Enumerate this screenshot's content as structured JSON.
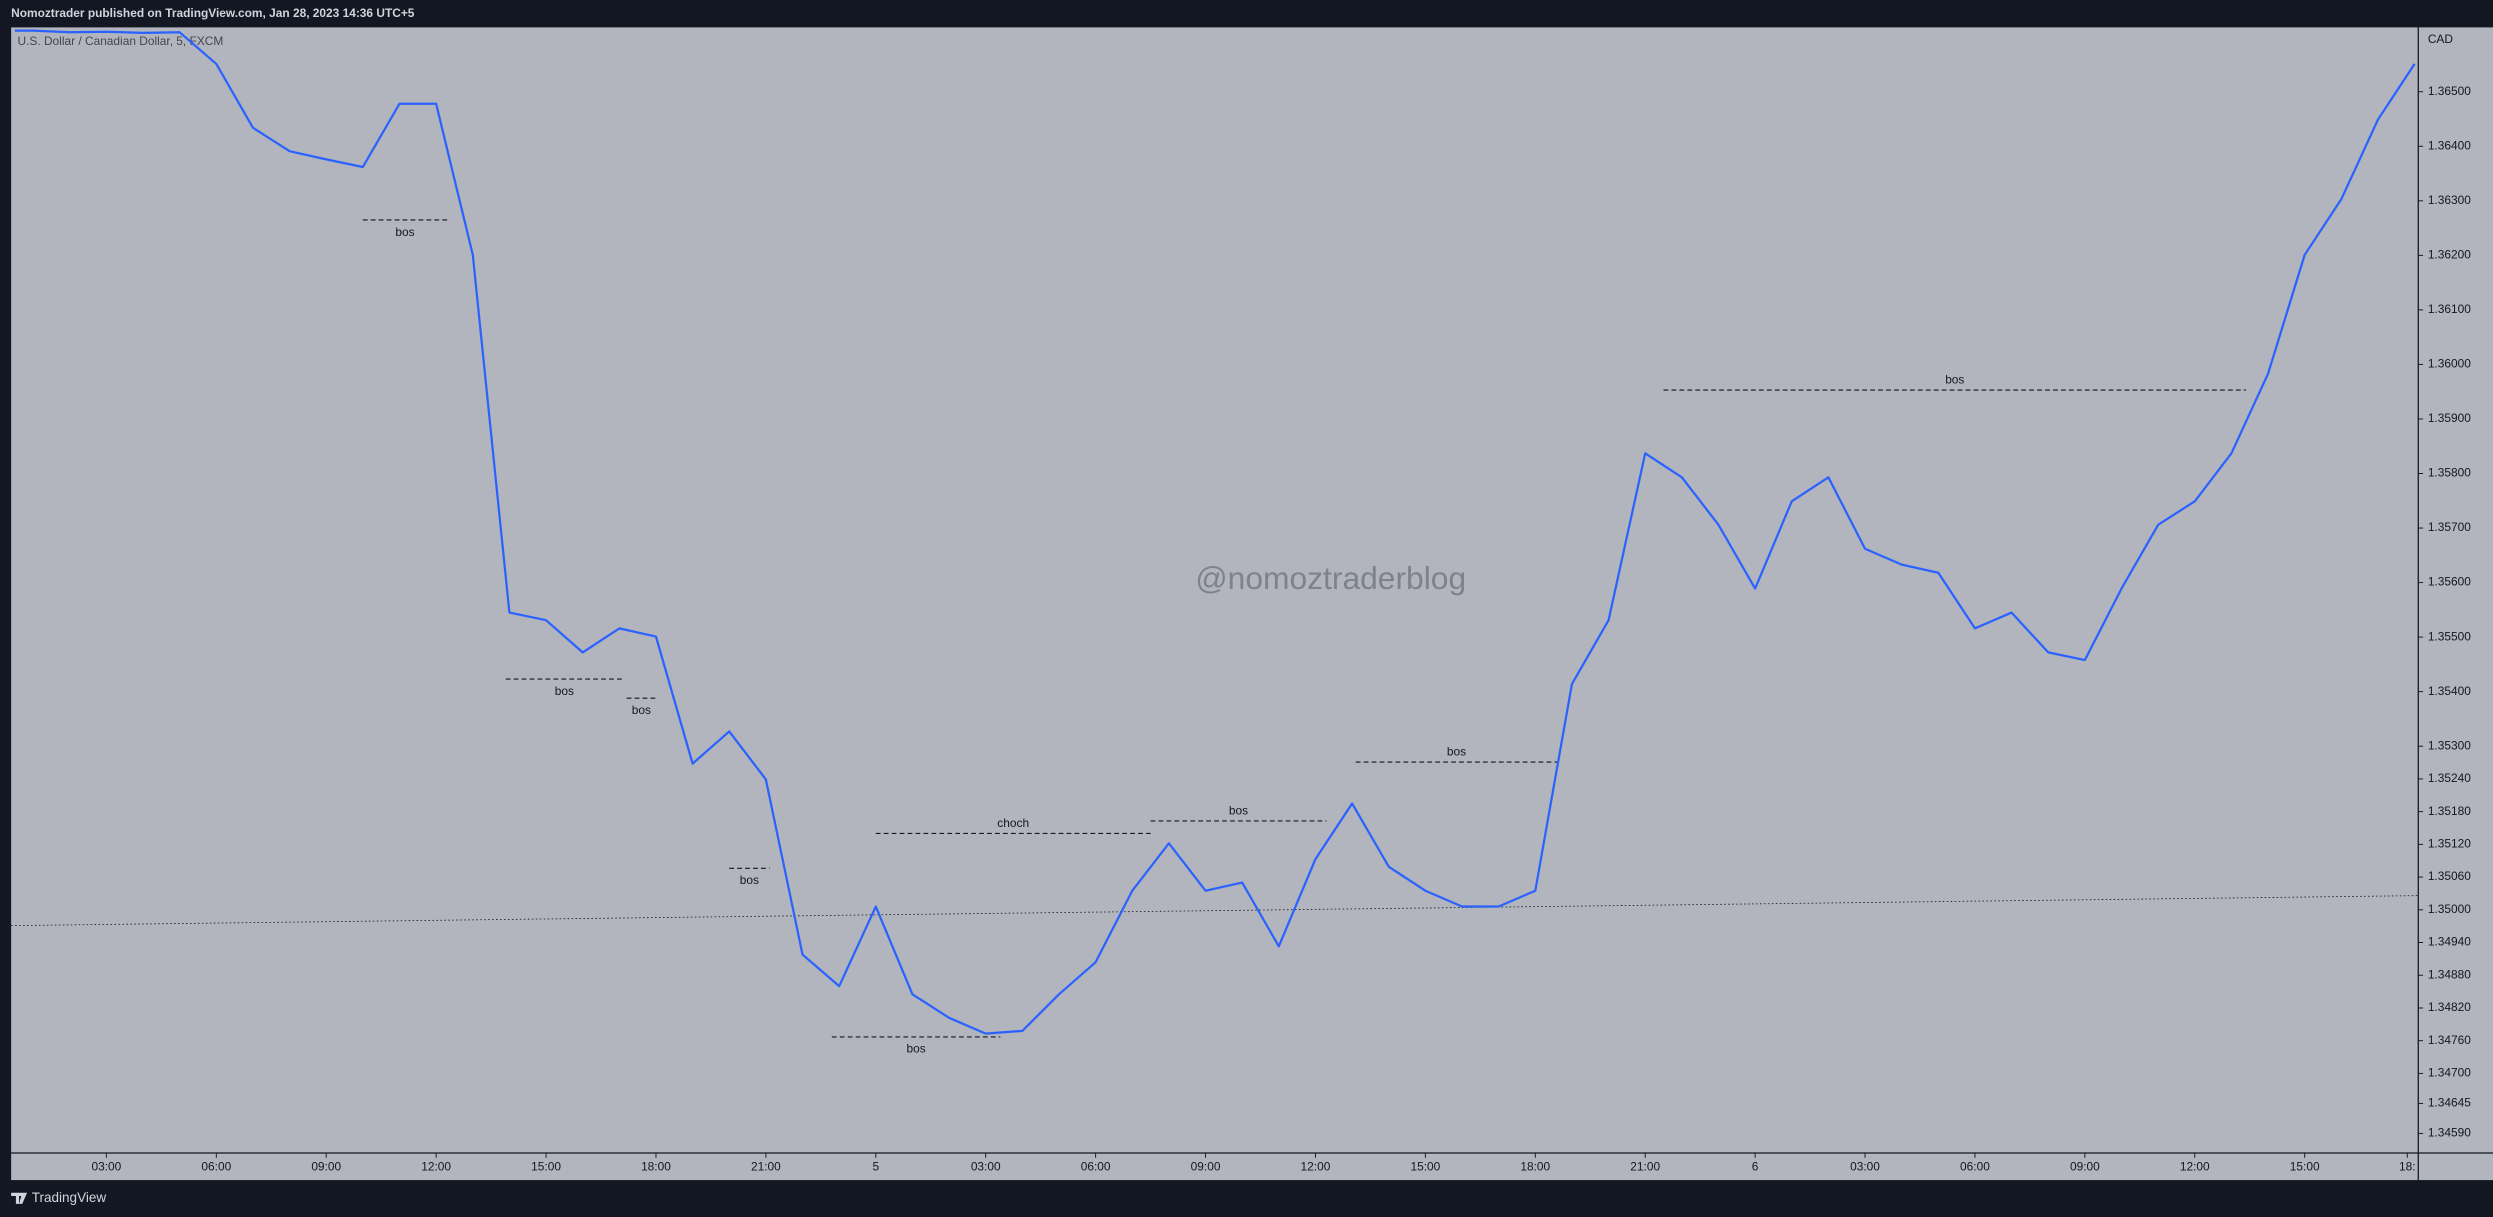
{
  "chart_data": {
    "type": "line",
    "header": "Nomoztrader published on TradingView.com, Jan 28, 2023 14:36 UTC+5",
    "symbol": "U.S. Dollar / Canadian Dollar, 5, FXCM",
    "currency": "CAD",
    "watermark": "@nomoztraderblog",
    "brand": "TradingView",
    "color": "#2962ff",
    "x": [
      0.5,
      1,
      2,
      3,
      4,
      5,
      6,
      7,
      8,
      9,
      10,
      11,
      12,
      13,
      14,
      15,
      16,
      17,
      18,
      19,
      20,
      21,
      22,
      23,
      24,
      25,
      26,
      27,
      28,
      29,
      30,
      31,
      32,
      33,
      34,
      35,
      36,
      37,
      38,
      39,
      40,
      41,
      42,
      43,
      44,
      45,
      46,
      47,
      48,
      49,
      50,
      51,
      52,
      53,
      54,
      55,
      56,
      57,
      58,
      59,
      60,
      61,
      62,
      63,
      64,
      65,
      66
    ],
    "values": [
      1.36612,
      1.36612,
      1.36609,
      1.3661,
      1.36608,
      1.36609,
      1.36551,
      1.36434,
      1.36391,
      1.36376,
      1.36362,
      1.36478,
      1.36478,
      1.36201,
      1.35545,
      1.35531,
      1.35472,
      1.35516,
      1.35501,
      1.35268,
      1.35327,
      1.35239,
      1.34918,
      1.3486,
      1.35006,
      1.34845,
      1.34802,
      1.34773,
      1.34778,
      1.34845,
      1.34904,
      1.35035,
      1.35122,
      1.35035,
      1.3505,
      1.34933,
      1.35093,
      1.35195,
      1.35079,
      1.35035,
      1.35006,
      1.35006,
      1.35035,
      1.35414,
      1.35531,
      1.35837,
      1.35793,
      1.35706,
      1.35589,
      1.35749,
      1.35793,
      1.35662,
      1.35633,
      1.35618,
      1.35516,
      1.35545,
      1.35472,
      1.35458,
      1.35589,
      1.35706,
      1.35749,
      1.35837,
      1.35983,
      1.36201,
      1.36303,
      1.36449,
      1.36551
    ],
    "xlim": [
      0.4,
      66.1
    ],
    "ylim": [
      1.34554,
      1.36618
    ],
    "xticks": [
      {
        "value": 3,
        "label": "03:00"
      },
      {
        "value": 6,
        "label": "06:00"
      },
      {
        "value": 9,
        "label": "09:00"
      },
      {
        "value": 12,
        "label": "12:00"
      },
      {
        "value": 15,
        "label": "15:00"
      },
      {
        "value": 18,
        "label": "18:00"
      },
      {
        "value": 21,
        "label": "21:00"
      },
      {
        "value": 24,
        "label": "5"
      },
      {
        "value": 27,
        "label": "03:00"
      },
      {
        "value": 30,
        "label": "06:00"
      },
      {
        "value": 33,
        "label": "09:00"
      },
      {
        "value": 36,
        "label": "12:00"
      },
      {
        "value": 39,
        "label": "15:00"
      },
      {
        "value": 42,
        "label": "18:00"
      },
      {
        "value": 45,
        "label": "21:00"
      },
      {
        "value": 48,
        "label": "6"
      },
      {
        "value": 51,
        "label": "03:00"
      },
      {
        "value": 54,
        "label": "06:00"
      },
      {
        "value": 57,
        "label": "09:00"
      },
      {
        "value": 60,
        "label": "12:00"
      },
      {
        "value": 63,
        "label": "15:00"
      },
      {
        "value": 65.8,
        "label": "18:"
      }
    ],
    "yticks": [
      {
        "value": 1.3459,
        "label": "1.34590"
      },
      {
        "value": 1.34645,
        "label": "1.34645"
      },
      {
        "value": 1.347,
        "label": "1.34700"
      },
      {
        "value": 1.3476,
        "label": "1.34760"
      },
      {
        "value": 1.3482,
        "label": "1.34820"
      },
      {
        "value": 1.3488,
        "label": "1.34880"
      },
      {
        "value": 1.3494,
        "label": "1.34940"
      },
      {
        "value": 1.35,
        "label": "1.35000"
      },
      {
        "value": 1.3506,
        "label": "1.35060"
      },
      {
        "value": 1.3512,
        "label": "1.35120"
      },
      {
        "value": 1.3518,
        "label": "1.35180"
      },
      {
        "value": 1.3524,
        "label": "1.35240"
      },
      {
        "value": 1.353,
        "label": "1.35300"
      },
      {
        "value": 1.354,
        "label": "1.35400"
      },
      {
        "value": 1.355,
        "label": "1.35500"
      },
      {
        "value": 1.356,
        "label": "1.35600"
      },
      {
        "value": 1.357,
        "label": "1.35700"
      },
      {
        "value": 1.358,
        "label": "1.35800"
      },
      {
        "value": 1.359,
        "label": "1.35900"
      },
      {
        "value": 1.36,
        "label": "1.36000"
      },
      {
        "value": 1.361,
        "label": "1.36100"
      },
      {
        "value": 1.362,
        "label": "1.36200"
      },
      {
        "value": 1.363,
        "label": "1.36300"
      },
      {
        "value": 1.364,
        "label": "1.36400"
      },
      {
        "value": 1.365,
        "label": "1.36500"
      }
    ],
    "levels": [
      {
        "label": "bos",
        "value": 1.36265,
        "x": [
          10.0,
          12.3
        ]
      },
      {
        "label": "bos",
        "value": 1.35423,
        "x": [
          13.9,
          17.1
        ]
      },
      {
        "label": "bos",
        "value": 1.35388,
        "x": [
          17.2,
          18.0
        ]
      },
      {
        "label": "bos",
        "value": 1.35076,
        "x": [
          20.0,
          21.1
        ]
      },
      {
        "label": "bos",
        "value": 1.34767,
        "x": [
          22.8,
          27.4
        ]
      },
      {
        "label": "choch",
        "value": 1.3514,
        "x": [
          24.0,
          31.5
        ]
      },
      {
        "label": "bos",
        "value": 1.35163,
        "x": [
          31.5,
          36.3
        ]
      },
      {
        "label": "bos",
        "value": 1.35271,
        "x": [
          37.1,
          42.6
        ]
      },
      {
        "label": "bos",
        "value": 1.35953,
        "x": [
          45.5,
          61.4
        ]
      }
    ],
    "trendline": {
      "x": [
        0.4,
        66.1
      ],
      "y": [
        1.34971,
        1.35026
      ]
    }
  }
}
